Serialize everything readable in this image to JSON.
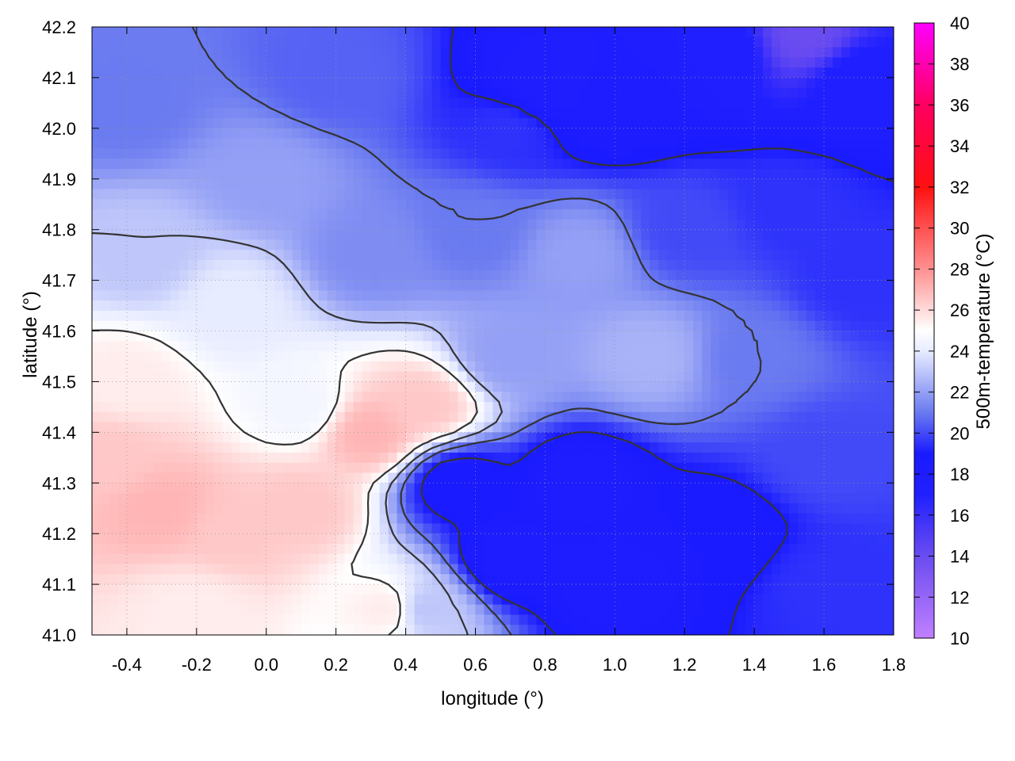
{
  "chart_data": {
    "type": "heatmap",
    "title": "",
    "xlabel": "longitude (°)",
    "ylabel": "latitude (°)",
    "colorbar_label": "500m-temperature (°C)",
    "xlim": [
      -0.5,
      1.8
    ],
    "ylim": [
      41.0,
      42.2
    ],
    "x_ticks": [
      "-0.4",
      "-0.2",
      "0.0",
      "0.2",
      "0.4",
      "0.6",
      "0.8",
      "1.0",
      "1.2",
      "1.4",
      "1.6",
      "1.8"
    ],
    "y_ticks": [
      "41.0",
      "41.1",
      "41.2",
      "41.3",
      "41.4",
      "41.5",
      "41.6",
      "41.7",
      "41.8",
      "41.9",
      "42.0",
      "42.1",
      "42.2"
    ],
    "colorbar_range": [
      10,
      40
    ],
    "colorbar_ticks": [
      "10",
      "12",
      "14",
      "16",
      "18",
      "20",
      "22",
      "24",
      "26",
      "28",
      "30",
      "32",
      "34",
      "36",
      "38",
      "40"
    ],
    "colormap": [
      {
        "value": 10,
        "color": "#c080ff"
      },
      {
        "value": 14,
        "color": "#6a4cf0"
      },
      {
        "value": 17,
        "color": "#2020ff"
      },
      {
        "value": 19,
        "color": "#1a1aff"
      },
      {
        "value": 21,
        "color": "#6a7af0"
      },
      {
        "value": 24,
        "color": "#e8ecff"
      },
      {
        "value": 25,
        "color": "#ffffff"
      },
      {
        "value": 28,
        "color": "#ff9090"
      },
      {
        "value": 32,
        "color": "#ff1010"
      },
      {
        "value": 36,
        "color": "#ff0060"
      },
      {
        "value": 40,
        "color": "#ff00ff"
      }
    ],
    "contour_color": "#333333",
    "grid": true,
    "field_samples": [
      {
        "lon": -0.45,
        "lat": 41.35,
        "temp": 26.5
      },
      {
        "lon": -0.3,
        "lat": 41.25,
        "temp": 27
      },
      {
        "lon": -0.1,
        "lat": 41.2,
        "temp": 26.5
      },
      {
        "lon": 0.1,
        "lat": 41.25,
        "temp": 26.5
      },
      {
        "lon": 0.3,
        "lat": 41.4,
        "temp": 27
      },
      {
        "lon": 0.45,
        "lat": 41.45,
        "temp": 26.5
      },
      {
        "lon": -0.4,
        "lat": 41.5,
        "temp": 25.5
      },
      {
        "lon": -0.2,
        "lat": 41.05,
        "temp": 25.5
      },
      {
        "lon": 0.1,
        "lat": 41.45,
        "temp": 24.5
      },
      {
        "lon": -0.1,
        "lat": 41.65,
        "temp": 24
      },
      {
        "lon": -0.35,
        "lat": 41.75,
        "temp": 23
      },
      {
        "lon": 0.0,
        "lat": 41.9,
        "temp": 22
      },
      {
        "lon": -0.4,
        "lat": 42.05,
        "temp": 21
      },
      {
        "lon": 0.2,
        "lat": 42.1,
        "temp": 20.5
      },
      {
        "lon": 0.3,
        "lat": 41.75,
        "temp": 21.5
      },
      {
        "lon": 0.6,
        "lat": 41.8,
        "temp": 21
      },
      {
        "lon": 0.7,
        "lat": 42.0,
        "temp": 19.5
      },
      {
        "lon": 0.8,
        "lat": 42.08,
        "temp": 17.5
      },
      {
        "lon": 1.0,
        "lat": 42.05,
        "temp": 18
      },
      {
        "lon": 1.3,
        "lat": 42.15,
        "temp": 17.5
      },
      {
        "lon": 1.55,
        "lat": 42.18,
        "temp": 14
      },
      {
        "lon": 1.7,
        "lat": 42.1,
        "temp": 17.5
      },
      {
        "lon": 0.9,
        "lat": 41.75,
        "temp": 22
      },
      {
        "lon": 1.2,
        "lat": 41.8,
        "temp": 20
      },
      {
        "lon": 1.5,
        "lat": 41.85,
        "temp": 19.5
      },
      {
        "lon": 1.7,
        "lat": 41.7,
        "temp": 19.5
      },
      {
        "lon": 1.1,
        "lat": 41.55,
        "temp": 22.5
      },
      {
        "lon": 1.4,
        "lat": 41.55,
        "temp": 21
      },
      {
        "lon": 0.7,
        "lat": 41.55,
        "temp": 22
      },
      {
        "lon": 0.55,
        "lat": 41.3,
        "temp": 18.5
      },
      {
        "lon": 0.7,
        "lat": 41.15,
        "temp": 18
      },
      {
        "lon": 0.9,
        "lat": 41.3,
        "temp": 18
      },
      {
        "lon": 1.0,
        "lat": 41.1,
        "temp": 18
      },
      {
        "lon": 1.3,
        "lat": 41.2,
        "temp": 18.5
      },
      {
        "lon": 1.6,
        "lat": 41.1,
        "temp": 19.5
      },
      {
        "lon": 1.6,
        "lat": 41.35,
        "temp": 20
      },
      {
        "lon": 0.45,
        "lat": 41.05,
        "temp": 23
      },
      {
        "lon": 0.35,
        "lat": 41.05,
        "temp": 25.5
      }
    ]
  }
}
